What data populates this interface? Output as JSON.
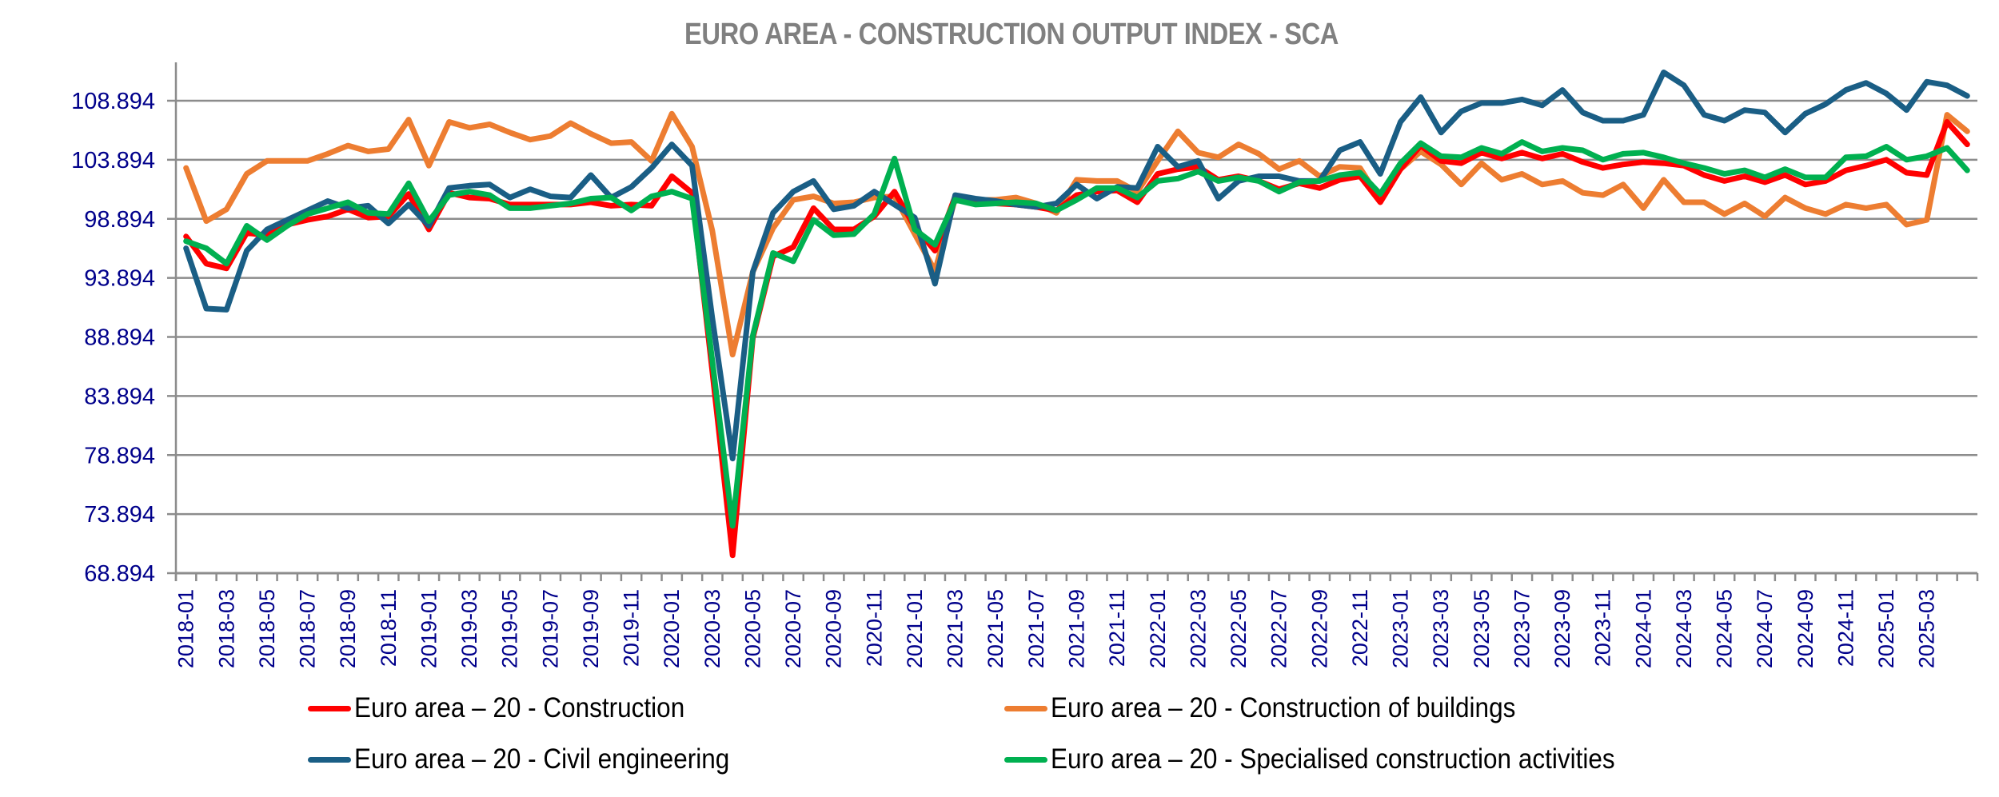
{
  "chart_data": {
    "type": "line",
    "title": "EURO AREA - CONSTRUCTION OUTPUT INDEX - SCA",
    "xlabel": "",
    "ylabel": "",
    "ylim": [
      68.894,
      112.0
    ],
    "yticks": [
      "68.894",
      "73.894",
      "78.894",
      "83.894",
      "88.894",
      "93.894",
      "98.894",
      "103.894",
      "108.894"
    ],
    "ytick_values": [
      68.894,
      73.894,
      78.894,
      83.894,
      88.894,
      93.894,
      98.894,
      103.894,
      108.894
    ],
    "grid": true,
    "legend_position": "bottom",
    "x": [
      "2018-01",
      "2018-02",
      "2018-03",
      "2018-04",
      "2018-05",
      "2018-06",
      "2018-07",
      "2018-08",
      "2018-09",
      "2018-10",
      "2018-11",
      "2018-12",
      "2019-01",
      "2019-02",
      "2019-03",
      "2019-04",
      "2019-05",
      "2019-06",
      "2019-07",
      "2019-08",
      "2019-09",
      "2019-10",
      "2019-11",
      "2019-12",
      "2020-01",
      "2020-02",
      "2020-03",
      "2020-04",
      "2020-05",
      "2020-06",
      "2020-07",
      "2020-08",
      "2020-09",
      "2020-10",
      "2020-11",
      "2020-12",
      "2021-01",
      "2021-02",
      "2021-03",
      "2021-04",
      "2021-05",
      "2021-06",
      "2021-07",
      "2021-08",
      "2021-09",
      "2021-10",
      "2021-11",
      "2021-12",
      "2022-01",
      "2022-02",
      "2022-03",
      "2022-04",
      "2022-05",
      "2022-06",
      "2022-07",
      "2022-08",
      "2022-09",
      "2022-10",
      "2022-11",
      "2022-12",
      "2023-01",
      "2023-02",
      "2023-03",
      "2023-04",
      "2023-05",
      "2023-06",
      "2023-07",
      "2023-08",
      "2023-09",
      "2023-10",
      "2023-11",
      "2023-12",
      "2024-01",
      "2024-02",
      "2024-03",
      "2024-04",
      "2024-05",
      "2024-06",
      "2024-07",
      "2024-08",
      "2024-09",
      "2024-10",
      "2024-11",
      "2024-12",
      "2025-01",
      "2025-02",
      "2025-03",
      "2025-04",
      "2025-05"
    ],
    "xtick_labels": [
      "2018-01",
      "2018-03",
      "2018-05",
      "2018-07",
      "2018-09",
      "2018-11",
      "2019-01",
      "2019-03",
      "2019-05",
      "2019-07",
      "2019-09",
      "2019-11",
      "2020-01",
      "2020-03",
      "2020-05",
      "2020-07",
      "2020-09",
      "2020-11",
      "2021-01",
      "2021-03",
      "2021-05",
      "2021-07",
      "2021-09",
      "2021-11",
      "2022-01",
      "2022-03",
      "2022-05",
      "2022-07",
      "2022-09",
      "2022-11",
      "2023-01",
      "2023-03",
      "2023-05",
      "2023-07",
      "2023-09",
      "2023-11",
      "2024-01",
      "2024-03",
      "2024-05",
      "2024-07",
      "2024-09",
      "2024-11",
      "2025-01",
      "2025-03"
    ],
    "series": [
      {
        "name": "Euro area – 20  - Construction",
        "color": "#ff0000",
        "values": [
          97.4,
          95.1,
          94.7,
          97.7,
          97.5,
          98.4,
          98.8,
          99.1,
          99.7,
          99.0,
          99.1,
          101.0,
          98.0,
          101.1,
          100.7,
          100.6,
          100.1,
          100.1,
          100.1,
          100.1,
          100.3,
          100.0,
          100.1,
          100.0,
          102.5,
          101.1,
          86.0,
          70.4,
          88.8,
          95.7,
          96.5,
          99.8,
          98.0,
          98.0,
          99.1,
          101.2,
          98.2,
          96.2,
          100.8,
          100.3,
          100.2,
          100.1,
          99.9,
          99.6,
          100.9,
          101.2,
          101.3,
          100.3,
          102.7,
          103.1,
          103.3,
          102.2,
          102.5,
          102.1,
          101.4,
          101.9,
          101.5,
          102.2,
          102.5,
          100.3,
          103.1,
          105.1,
          103.8,
          103.6,
          104.5,
          104.0,
          104.5,
          104.0,
          104.4,
          103.7,
          103.2,
          103.5,
          103.7,
          103.6,
          103.4,
          102.6,
          102.1,
          102.5,
          102.0,
          102.6,
          101.8,
          102.1,
          103.0,
          103.4,
          103.9,
          102.8,
          102.6,
          107.1,
          105.2
        ]
      },
      {
        "name": "Euro area – 20  - Construction of buildings",
        "color": "#ed7d31",
        "values": [
          103.2,
          98.7,
          99.7,
          102.7,
          103.8,
          103.8,
          103.8,
          104.4,
          105.1,
          104.6,
          104.8,
          107.3,
          103.4,
          107.1,
          106.6,
          106.9,
          106.2,
          105.6,
          105.9,
          107.0,
          106.1,
          105.3,
          105.4,
          103.8,
          107.8,
          105.0,
          97.9,
          87.4,
          94.4,
          98.1,
          100.5,
          100.8,
          100.2,
          100.3,
          100.7,
          100.8,
          97.6,
          94.5,
          100.6,
          100.5,
          100.5,
          100.7,
          100.2,
          99.4,
          102.2,
          102.1,
          102.1,
          101.2,
          103.8,
          106.3,
          104.5,
          104.1,
          105.2,
          104.4,
          103.1,
          103.8,
          102.5,
          103.3,
          103.2,
          100.5,
          103.1,
          104.6,
          103.5,
          101.8,
          103.6,
          102.2,
          102.7,
          101.8,
          102.1,
          101.1,
          100.9,
          101.8,
          99.8,
          102.2,
          100.3,
          100.3,
          99.3,
          100.2,
          99.1,
          100.7,
          99.8,
          99.3,
          100.1,
          99.8,
          100.1,
          98.4,
          98.8,
          107.7,
          106.3
        ]
      },
      {
        "name": "Euro area – 20  - Civil engineering",
        "color": "#1a5e85",
        "values": [
          96.4,
          91.3,
          91.2,
          96.2,
          98.0,
          98.8,
          99.6,
          100.4,
          99.8,
          100.0,
          98.5,
          100.1,
          98.3,
          101.5,
          101.7,
          101.8,
          100.7,
          101.4,
          100.8,
          100.7,
          102.6,
          100.7,
          101.6,
          103.2,
          105.2,
          103.4,
          90.5,
          78.6,
          94.4,
          99.4,
          101.2,
          102.1,
          99.7,
          100.0,
          101.2,
          100.1,
          99.0,
          93.4,
          100.9,
          100.6,
          100.4,
          100.1,
          99.9,
          100.2,
          101.8,
          100.6,
          101.6,
          101.5,
          105.0,
          103.3,
          103.8,
          100.6,
          102.1,
          102.5,
          102.5,
          102.1,
          102.1,
          104.7,
          105.4,
          102.7,
          107.1,
          109.2,
          106.2,
          108.0,
          108.7,
          108.7,
          109.0,
          108.5,
          109.8,
          107.9,
          107.2,
          107.2,
          107.7,
          111.3,
          110.2,
          107.7,
          107.2,
          108.1,
          107.9,
          106.2,
          107.8,
          108.6,
          109.8,
          110.4,
          109.5,
          108.1,
          110.5,
          110.2,
          109.3
        ]
      },
      {
        "name": "Euro area – 20  - Specialised construction activities",
        "color": "#00b050",
        "values": [
          97.0,
          96.4,
          95.1,
          98.3,
          97.1,
          98.3,
          99.3,
          99.8,
          100.3,
          99.4,
          99.3,
          101.9,
          98.7,
          100.9,
          101.2,
          100.9,
          99.8,
          99.8,
          100.0,
          100.2,
          100.6,
          100.7,
          99.6,
          100.8,
          101.2,
          100.6,
          86.9,
          72.9,
          89.0,
          96.0,
          95.3,
          98.8,
          97.5,
          97.6,
          99.3,
          104.0,
          98.0,
          96.7,
          100.5,
          100.1,
          100.2,
          100.3,
          100.2,
          99.6,
          100.5,
          101.5,
          101.5,
          100.7,
          102.1,
          102.3,
          102.9,
          102.1,
          102.4,
          102.1,
          101.2,
          102.0,
          102.1,
          102.6,
          102.8,
          101.0,
          103.6,
          105.3,
          104.2,
          104.1,
          104.9,
          104.4,
          105.4,
          104.6,
          104.9,
          104.7,
          103.9,
          104.4,
          104.5,
          104.1,
          103.6,
          103.2,
          102.7,
          103.0,
          102.4,
          103.1,
          102.4,
          102.4,
          104.1,
          104.2,
          105.0,
          103.9,
          104.2,
          104.9,
          103.0
        ]
      }
    ]
  },
  "colors": {
    "title": "#808080",
    "axis_labels": "#00008b",
    "gridline": "#8c8c8c",
    "legend_text": "#000000"
  }
}
